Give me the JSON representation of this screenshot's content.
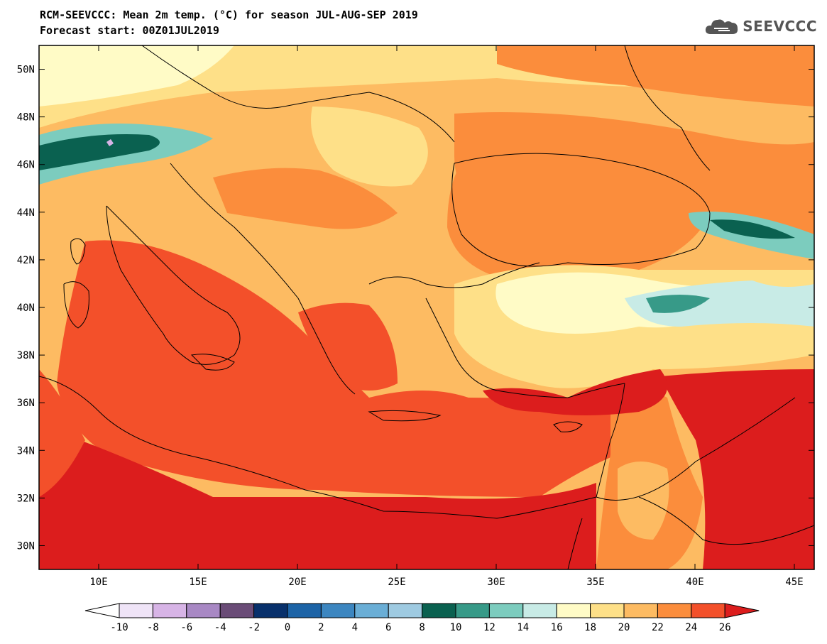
{
  "title_line1": "RCM-SEEVCCC: Mean 2m temp. (°C) for season JUL-AUG-SEP 2019",
  "title_line2": "Forecast start: 00Z01JUL2019",
  "logo_text": "SEEVCCC",
  "map": {
    "lon_range": [
      7,
      46
    ],
    "lat_range": [
      29,
      51
    ],
    "lon_ticks": [
      "10E",
      "15E",
      "20E",
      "25E",
      "30E",
      "35E",
      "40E",
      "45E"
    ],
    "lat_ticks": [
      "30N",
      "32N",
      "34N",
      "36N",
      "38N",
      "40N",
      "42N",
      "44N",
      "46N",
      "48N",
      "50N"
    ]
  },
  "colorbar": {
    "labels": [
      "-10",
      "-8",
      "-6",
      "-4",
      "-2",
      "0",
      "2",
      "4",
      "6",
      "8",
      "10",
      "12",
      "14",
      "16",
      "18",
      "20",
      "22",
      "24",
      "26"
    ],
    "colors": [
      "#ffffff",
      "#efe4f7",
      "#d7b4e6",
      "#a888c4",
      "#6a4c77",
      "#08306b",
      "#1c63a6",
      "#3c86c0",
      "#6aaed6",
      "#9ecae1",
      "#0a6150",
      "#379a88",
      "#7cccbe",
      "#c8ebe6",
      "#fffbc6",
      "#fee088",
      "#fdbb62",
      "#fb8d3c",
      "#f3502a",
      "#dc1d1d"
    ]
  }
}
